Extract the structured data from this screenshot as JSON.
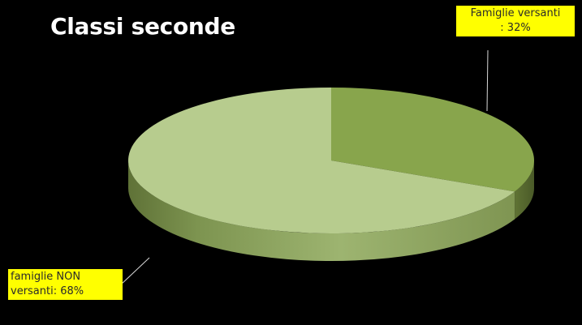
{
  "chart_data": {
    "type": "pie",
    "title": "Classi seconde",
    "slices": [
      {
        "label_line1": "Famiglie versanti",
        "label_line2": ": 32%",
        "value": 32,
        "color": "#88a54c"
      },
      {
        "label_line1": "famiglie NON",
        "label_line2": "versanti: 68%",
        "value": 68,
        "color": "#b7cc8e"
      }
    ],
    "legend": "none",
    "label_background": "#ffff00"
  }
}
